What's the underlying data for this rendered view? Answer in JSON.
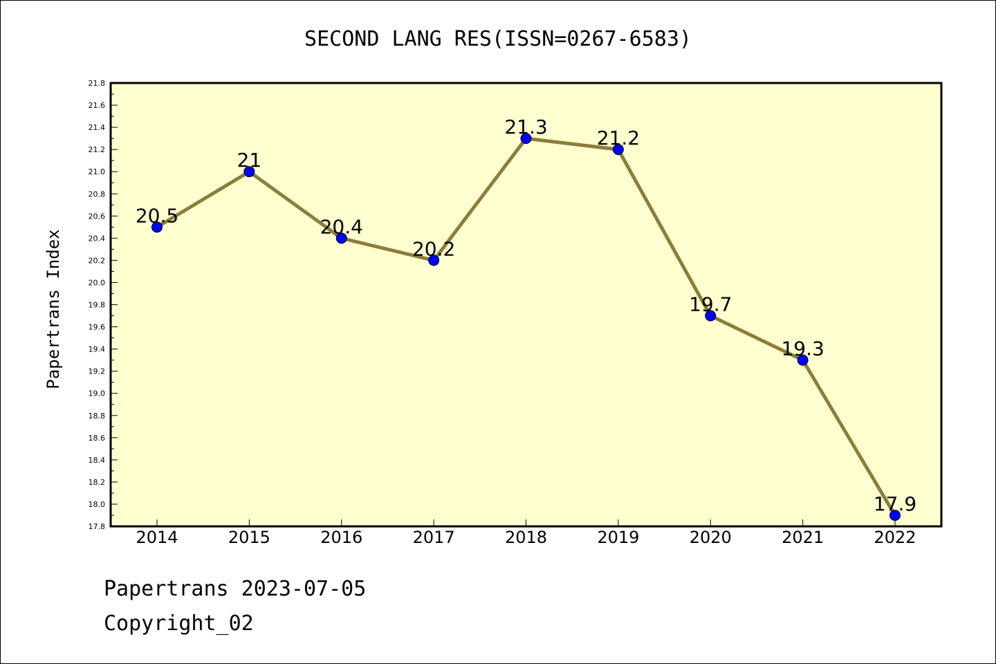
{
  "chart_data": {
    "type": "line",
    "title": "SECOND LANG RES(ISSN=0267-6583)",
    "xlabel": "",
    "ylabel": "Papertrans Index",
    "categories": [
      "2014",
      "2015",
      "2016",
      "2017",
      "2018",
      "2019",
      "2020",
      "2021",
      "2022"
    ],
    "values": [
      20.5,
      21,
      20.4,
      20.2,
      21.3,
      21.2,
      19.7,
      19.3,
      17.9
    ],
    "data_labels": [
      "20.5",
      "21",
      "20.4",
      "20.2",
      "21.3",
      "21.2",
      "19.7",
      "19.3",
      "17.9"
    ],
    "ylim": [
      17.8,
      21.8
    ],
    "yticks": [
      "17.8",
      "18.0",
      "18.2",
      "18.4",
      "18.6",
      "18.8",
      "19.0",
      "19.2",
      "19.4",
      "19.6",
      "19.8",
      "20.0",
      "20.2",
      "20.4",
      "20.6",
      "20.8",
      "21.0",
      "21.2",
      "21.4",
      "21.6",
      "21.8"
    ],
    "grid": false,
    "colors": {
      "plot_background": "#ffffd0",
      "line": "#8b7d3a",
      "marker": "#0000ff"
    }
  },
  "footer": {
    "line1": "Papertrans 2023-07-05",
    "line2": "Copyright_02"
  }
}
